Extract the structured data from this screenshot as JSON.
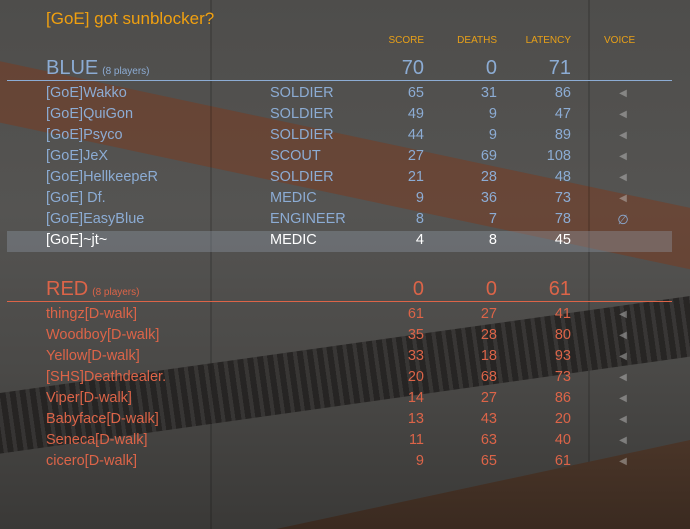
{
  "server_title": "[GoE] got sunblocker?",
  "columns": {
    "score": "SCORE",
    "deaths": "DEATHS",
    "latency": "LATENCY",
    "voice": "VOICE"
  },
  "colors": {
    "title": "#f0a010",
    "blue": "#8cacd4",
    "red": "#dc6448",
    "highlight_text": "#ffffff"
  },
  "teams": [
    {
      "name": "BLUE",
      "count": "(8 players)",
      "score": "70",
      "deaths": "0",
      "latency": "71",
      "color": "#8cacd4",
      "players": [
        {
          "name": "[GoE]Wakko",
          "class": "SOLDIER",
          "score": "65",
          "deaths": "31",
          "latency": "86",
          "voice": "speaker-icon"
        },
        {
          "name": "[GoE]QuiGon",
          "class": "SOLDIER",
          "score": "49",
          "deaths": "9",
          "latency": "47",
          "voice": "speaker-icon"
        },
        {
          "name": "[GoE]Psyco",
          "class": "SOLDIER",
          "score": "44",
          "deaths": "9",
          "latency": "89",
          "voice": "speaker-icon"
        },
        {
          "name": "[GoE]JeX",
          "class": "SCOUT",
          "score": "27",
          "deaths": "69",
          "latency": "108",
          "voice": "speaker-icon"
        },
        {
          "name": "[GoE]HellkeepeR",
          "class": "SOLDIER",
          "score": "21",
          "deaths": "28",
          "latency": "48",
          "voice": "speaker-icon"
        },
        {
          "name": "[GoE] Df.",
          "class": "MEDIC",
          "score": "9",
          "deaths": "36",
          "latency": "73",
          "voice": "speaker-icon"
        },
        {
          "name": "[GoE]EasyBlue",
          "class": "ENGINEER",
          "score": "8",
          "deaths": "7",
          "latency": "78",
          "voice": "muted-icon"
        },
        {
          "name": "[GoE]~jt~",
          "class": "MEDIC",
          "score": "4",
          "deaths": "8",
          "latency": "45",
          "voice": "",
          "local": true
        }
      ]
    },
    {
      "name": "RED",
      "count": "(8 players)",
      "score": "0",
      "deaths": "0",
      "latency": "61",
      "color": "#dc6448",
      "players": [
        {
          "name": "thingz[D-walk]",
          "class": "",
          "score": "61",
          "deaths": "27",
          "latency": "41",
          "voice": "speaker-icon"
        },
        {
          "name": "Woodboy[D-walk]",
          "class": "",
          "score": "35",
          "deaths": "28",
          "latency": "80",
          "voice": "speaker-icon"
        },
        {
          "name": "Yellow[D-walk]",
          "class": "",
          "score": "33",
          "deaths": "18",
          "latency": "93",
          "voice": "speaker-icon"
        },
        {
          "name": "[SHS]Deathdealer.",
          "class": "",
          "score": "20",
          "deaths": "68",
          "latency": "73",
          "voice": "speaker-icon"
        },
        {
          "name": "Viper[D-walk]",
          "class": "",
          "score": "14",
          "deaths": "27",
          "latency": "86",
          "voice": "speaker-icon"
        },
        {
          "name": "Babyface[D-walk]",
          "class": "",
          "score": "13",
          "deaths": "43",
          "latency": "20",
          "voice": "speaker-icon"
        },
        {
          "name": "Seneca[D-walk]",
          "class": "",
          "score": "11",
          "deaths": "63",
          "latency": "40",
          "voice": "speaker-icon"
        },
        {
          "name": "cicero[D-walk]",
          "class": "",
          "score": "9",
          "deaths": "65",
          "latency": "61",
          "voice": "speaker-icon"
        }
      ]
    }
  ]
}
